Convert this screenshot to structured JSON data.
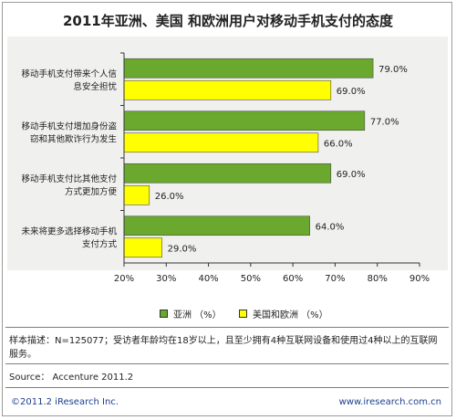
{
  "title": "2011年亚洲、美国 和欧洲用户对移动手机支付的态度",
  "chart_data": {
    "type": "bar",
    "orientation": "horizontal",
    "categories": [
      [
        "移动手机支付带来个人信",
        "息安全担忧"
      ],
      [
        "移动手机支付增加身份盗",
        "窃和其他欺诈行为发生"
      ],
      [
        "移动手机支付比其他支付",
        "方式更加方便"
      ],
      [
        "未来将更多选择移动手机",
        "支付方式"
      ]
    ],
    "series": [
      {
        "name": "亚洲 （%）",
        "values": [
          79.0,
          77.0,
          69.0,
          64.0
        ],
        "color": "#6aa82e"
      },
      {
        "name": "美国和欧洲 （%）",
        "values": [
          69.0,
          66.0,
          26.0,
          29.0
        ],
        "color": "#ffff00"
      }
    ],
    "value_labels": [
      [
        "79.0%",
        "69.0%"
      ],
      [
        "77.0%",
        "66.0%"
      ],
      [
        "69.0%",
        "26.0%"
      ],
      [
        "64.0%",
        "29.0%"
      ]
    ],
    "xlim": [
      20,
      90
    ],
    "xticks": [
      20,
      30,
      40,
      50,
      60,
      70,
      80,
      90
    ],
    "xtick_labels": [
      "20%",
      "30%",
      "40%",
      "50%",
      "60%",
      "70%",
      "80%",
      "90%"
    ],
    "legend_position": "bottom",
    "grid": false
  },
  "note": "样本描述：N=125077；受访者年龄均在18岁以上，且至少拥有4种互联网设备和使用过4种以上的互联网服务。",
  "source": "Source： Accenture 2011.2",
  "footer": {
    "copyright": "©2011.2 iResearch Inc.",
    "website": "www.iresearch.com.cn"
  }
}
